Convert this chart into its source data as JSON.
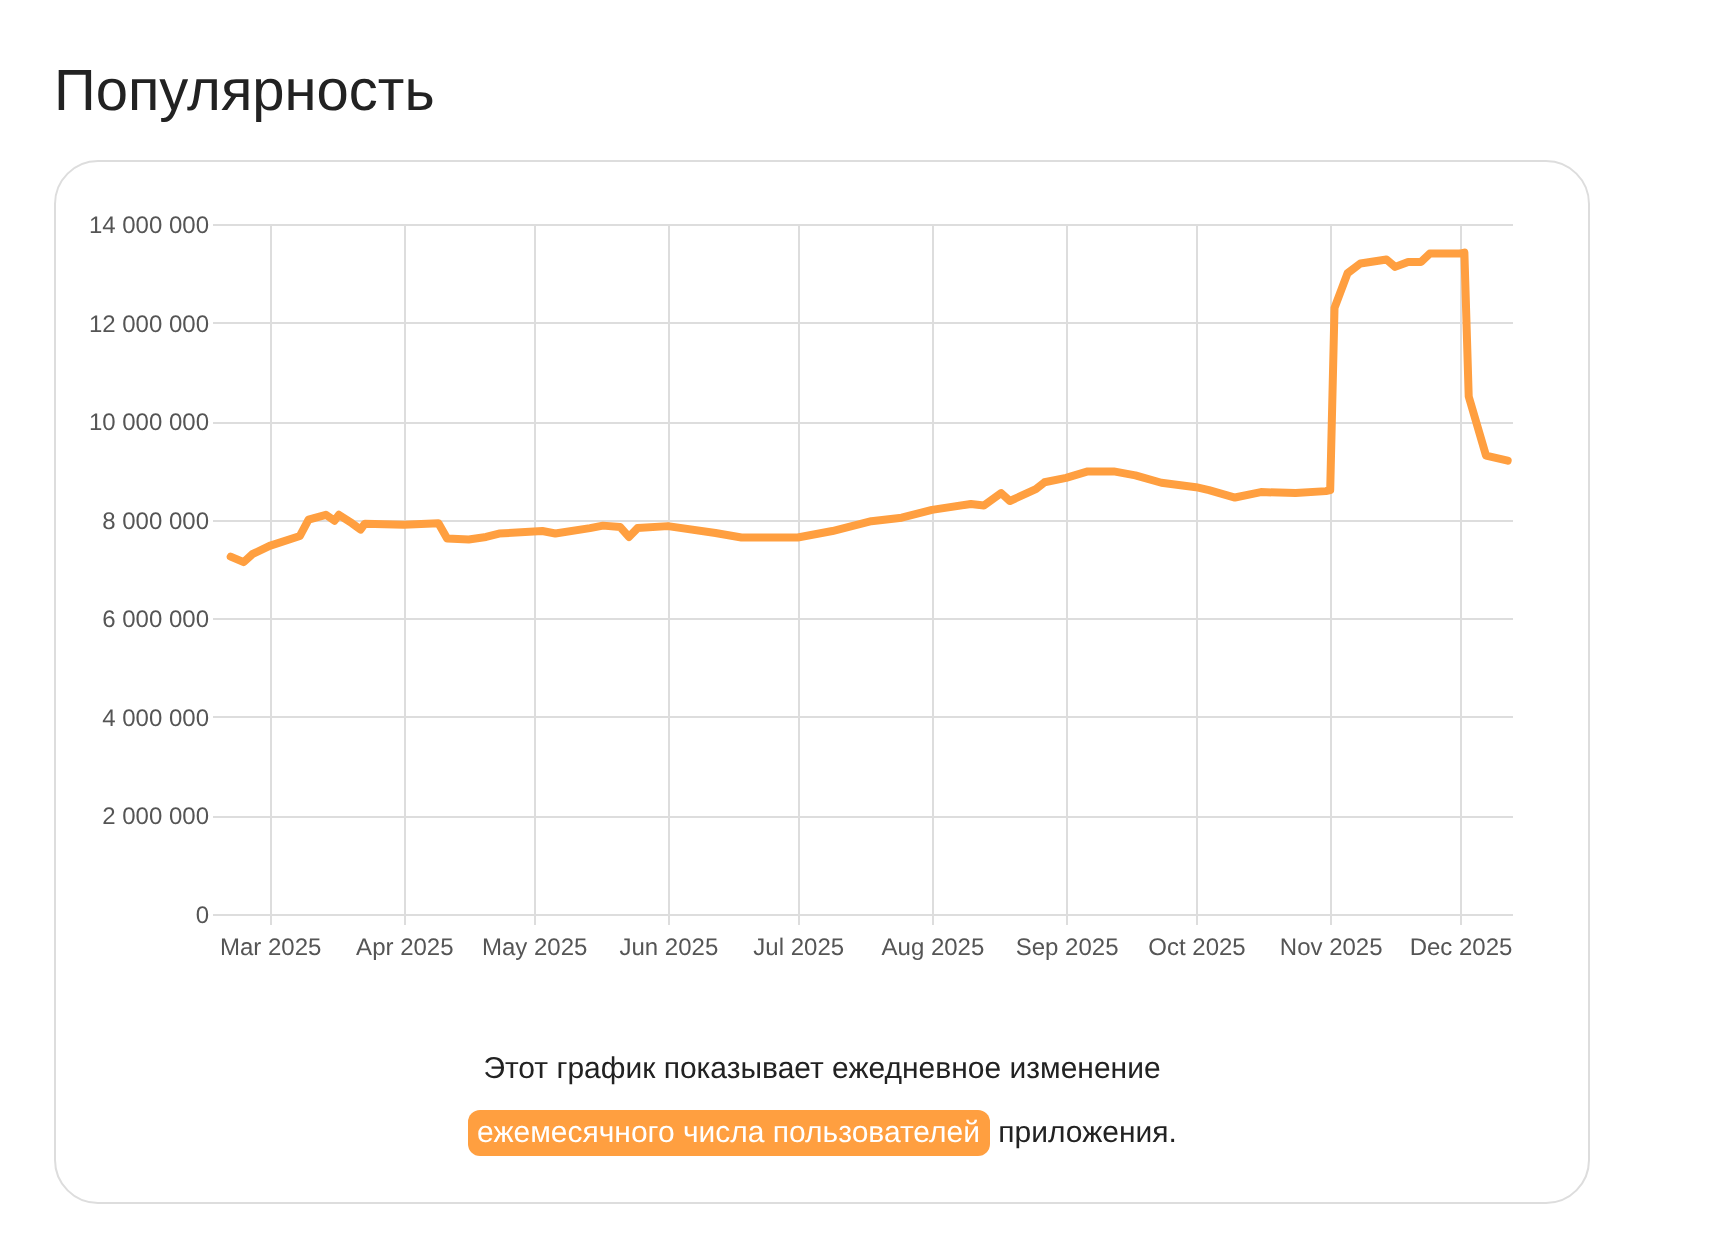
{
  "chart_data": {
    "type": "line",
    "title": "Популярность",
    "annotations": [
      "Этот график показывает ежедневное изменение",
      "ежемесячного числа пользователей",
      "приложения."
    ],
    "x": [
      "2025-02-20",
      "2025-02-23",
      "2025-02-25",
      "2025-03-01",
      "2025-03-08",
      "2025-03-10",
      "2025-03-14",
      "2025-03-16",
      "2025-03-17",
      "2025-03-20",
      "2025-03-22",
      "2025-03-23",
      "2025-04-01",
      "2025-04-09",
      "2025-04-11",
      "2025-04-16",
      "2025-04-20",
      "2025-04-23",
      "2025-05-03",
      "2025-05-06",
      "2025-05-14",
      "2025-05-17",
      "2025-05-21",
      "2025-05-23",
      "2025-05-25",
      "2025-06-01",
      "2025-06-12",
      "2025-06-18",
      "2025-07-01",
      "2025-07-09",
      "2025-07-18",
      "2025-07-25",
      "2025-08-01",
      "2025-08-10",
      "2025-08-13",
      "2025-08-17",
      "2025-08-19",
      "2025-08-25",
      "2025-08-27",
      "2025-09-01",
      "2025-09-06",
      "2025-09-12",
      "2025-09-17",
      "2025-09-23",
      "2025-10-01",
      "2025-10-04",
      "2025-10-10",
      "2025-10-16",
      "2025-10-24",
      "2025-10-31",
      "2025-11-01",
      "2025-11-02",
      "2025-11-05",
      "2025-11-08",
      "2025-11-14",
      "2025-11-16",
      "2025-11-19",
      "2025-11-22",
      "2025-11-24",
      "2025-12-01",
      "2025-12-02",
      "2025-12-03",
      "2025-12-07",
      "2025-12-12"
    ],
    "series": [
      {
        "color": "#ff9f40",
        "values": [
          7250000,
          7140000,
          7300000,
          7470000,
          7670000,
          8000000,
          8100000,
          7980000,
          8100000,
          7930000,
          7800000,
          7920000,
          7900000,
          7930000,
          7620000,
          7600000,
          7650000,
          7720000,
          7770000,
          7720000,
          7830000,
          7880000,
          7850000,
          7650000,
          7830000,
          7870000,
          7730000,
          7640000,
          7640000,
          7770000,
          7970000,
          8040000,
          8200000,
          8320000,
          8290000,
          8540000,
          8380000,
          8620000,
          8760000,
          8850000,
          8980000,
          8980000,
          8900000,
          8750000,
          8660000,
          8600000,
          8450000,
          8560000,
          8540000,
          8580000,
          8600000,
          12300000,
          13000000,
          13200000,
          13280000,
          13130000,
          13230000,
          13230000,
          13400000,
          13400000,
          13420000,
          10500000,
          9300000,
          9200000
        ]
      }
    ],
    "xlim": [
      "2025-02-18",
      "2025-12-13"
    ],
    "xticks": [
      {
        "value": "2025-03-01",
        "label": "Mar 2025"
      },
      {
        "value": "2025-04-01",
        "label": "Apr 2025"
      },
      {
        "value": "2025-05-01",
        "label": "May 2025"
      },
      {
        "value": "2025-06-01",
        "label": "Jun 2025"
      },
      {
        "value": "2025-07-01",
        "label": "Jul 2025"
      },
      {
        "value": "2025-08-01",
        "label": "Aug 2025"
      },
      {
        "value": "2025-09-01",
        "label": "Sep 2025"
      },
      {
        "value": "2025-10-01",
        "label": "Oct 2025"
      },
      {
        "value": "2025-11-01",
        "label": "Nov 2025"
      },
      {
        "value": "2025-12-01",
        "label": "Dec 2025"
      }
    ],
    "ylim": [
      0,
      14000000
    ],
    "yticks": [
      {
        "value": 0,
        "label": "0"
      },
      {
        "value": 2000000,
        "label": "2 000 000"
      },
      {
        "value": 4000000,
        "label": "4 000 000"
      },
      {
        "value": 6000000,
        "label": "6 000 000"
      },
      {
        "value": 8000000,
        "label": "8 000 000"
      },
      {
        "value": 10000000,
        "label": "10 000 000"
      },
      {
        "value": 12000000,
        "label": "12 000 000"
      },
      {
        "value": 14000000,
        "label": "14 000 000"
      }
    ],
    "grid": true,
    "marker": "none",
    "line_style": "solid"
  }
}
